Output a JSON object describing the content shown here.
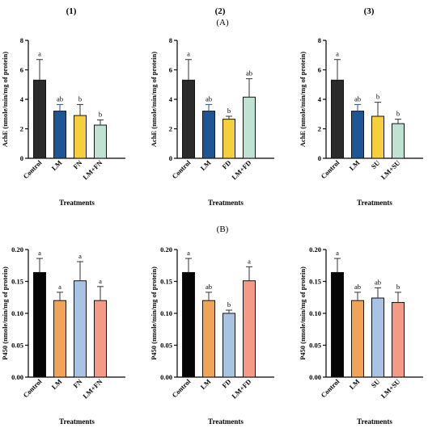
{
  "figure": {
    "column_labels": [
      "(1)",
      "(2)",
      "(3)"
    ],
    "panel_labels": [
      "(A)",
      "(B)"
    ]
  },
  "colors": {
    "Control": "#2b2b2b",
    "LM_blue": "#1e5597",
    "yellow": "#f6cf3c",
    "teal": "#bfe3d3",
    "black": "#050505",
    "LM_orange": "#f0a458",
    "lightblue": "#a9c4e3",
    "salmon": "#f49a86"
  },
  "chart_data": [
    {
      "type": "bar",
      "categories": [
        "Control",
        "LM",
        "FN",
        "LM+FN"
      ],
      "values": [
        5.3,
        3.2,
        2.9,
        2.25
      ],
      "errors": [
        1.4,
        0.45,
        0.75,
        0.35
      ],
      "significance": [
        "a",
        "ab",
        "b",
        "b"
      ],
      "colors": [
        "#2b2b2b",
        "#1e5597",
        "#f6cf3c",
        "#bfe3d3"
      ],
      "ylabel": "AchE (nmole/min/mg of protein)",
      "xlabel": "Treatments",
      "ylim": [
        0,
        8
      ],
      "yticks": [
        "0",
        "2",
        "4",
        "6",
        "8"
      ],
      "ytick_values": [
        0,
        2,
        4,
        6,
        8
      ]
    },
    {
      "type": "bar",
      "categories": [
        "Control",
        "LM",
        "FD",
        "LM+FD"
      ],
      "values": [
        5.3,
        3.2,
        2.65,
        4.15
      ],
      "errors": [
        1.4,
        0.45,
        0.2,
        1.25
      ],
      "significance": [
        "a",
        "ab",
        "b",
        "ab"
      ],
      "colors": [
        "#2b2b2b",
        "#1e5597",
        "#f6cf3c",
        "#bfe3d3"
      ],
      "ylabel": "AchE (nmole/min/mg of protein)",
      "xlabel": "Treatments",
      "ylim": [
        0,
        8
      ],
      "yticks": [
        "0",
        "2",
        "4",
        "6",
        "8"
      ],
      "ytick_values": [
        0,
        2,
        4,
        6,
        8
      ]
    },
    {
      "type": "bar",
      "categories": [
        "Control",
        "LM",
        "SU",
        "LM+SU"
      ],
      "values": [
        5.3,
        3.2,
        2.85,
        2.35
      ],
      "errors": [
        1.4,
        0.45,
        0.95,
        0.3
      ],
      "significance": [
        "a",
        "ab",
        "b",
        "b"
      ],
      "colors": [
        "#2b2b2b",
        "#1e5597",
        "#f6cf3c",
        "#bfe3d3"
      ],
      "ylabel": "AchE (nmole/min/mg of protein)",
      "xlabel": "Treatments",
      "ylim": [
        0,
        8
      ],
      "yticks": [
        "0",
        "2",
        "4",
        "6",
        "8"
      ],
      "ytick_values": [
        0,
        2,
        4,
        6,
        8
      ]
    },
    {
      "type": "bar",
      "categories": [
        "Control",
        "LM",
        "FN",
        "LM+FN"
      ],
      "values": [
        0.164,
        0.12,
        0.151,
        0.12
      ],
      "errors": [
        0.022,
        0.013,
        0.03,
        0.022
      ],
      "significance": [
        "a",
        "a",
        "a",
        "a"
      ],
      "colors": [
        "#050505",
        "#f0a458",
        "#a9c4e3",
        "#f49a86"
      ],
      "ylabel": "P450 (nmole/min/mg of protein)",
      "xlabel": "Treatments",
      "ylim": [
        0,
        0.2
      ],
      "yticks": [
        "0.00",
        "0.05",
        "0.10",
        "0.15",
        "0.20"
      ],
      "ytick_values": [
        0,
        0.05,
        0.1,
        0.15,
        0.2
      ]
    },
    {
      "type": "bar",
      "categories": [
        "Control",
        "LM",
        "FD",
        "LM+FD"
      ],
      "values": [
        0.164,
        0.12,
        0.1,
        0.151
      ],
      "errors": [
        0.022,
        0.013,
        0.005,
        0.022
      ],
      "significance": [
        "a",
        "ab",
        "b",
        "a"
      ],
      "colors": [
        "#050505",
        "#f0a458",
        "#a9c4e3",
        "#f49a86"
      ],
      "ylabel": "P450 (nmole/min/mg of protein)",
      "xlabel": "Treatments",
      "ylim": [
        0,
        0.2
      ],
      "yticks": [
        "0.00",
        "0.05",
        "0.10",
        "0.15",
        "0.20"
      ],
      "ytick_values": [
        0,
        0.05,
        0.1,
        0.15,
        0.2
      ]
    },
    {
      "type": "bar",
      "categories": [
        "Control",
        "LM",
        "SU",
        "LM+SU"
      ],
      "values": [
        0.164,
        0.12,
        0.124,
        0.117
      ],
      "errors": [
        0.022,
        0.013,
        0.016,
        0.016
      ],
      "significance": [
        "a",
        "ab",
        "ab",
        "b"
      ],
      "colors": [
        "#050505",
        "#f0a458",
        "#a9c4e3",
        "#f49a86"
      ],
      "ylabel": "P450 (nmole/min/mg of protein)",
      "xlabel": "Treatments",
      "ylim": [
        0,
        0.2
      ],
      "yticks": [
        "0.00",
        "0.05",
        "0.10",
        "0.15",
        "0.20"
      ],
      "ytick_values": [
        0,
        0.05,
        0.1,
        0.15,
        0.2
      ]
    }
  ]
}
